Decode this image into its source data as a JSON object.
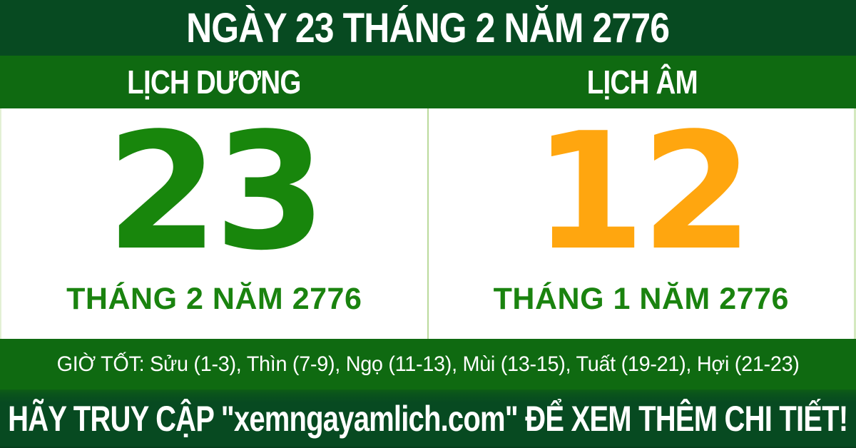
{
  "colors": {
    "dark_green": "#074a21",
    "band_green": "#0f6a11",
    "day_green": "#18860c",
    "day_orange": "#ffa60f",
    "label_green": "#1a830f",
    "divider_green": "#bada9c",
    "text_white": "#ffffff"
  },
  "title_bar": {
    "text": "NGÀY 23 THÁNG 2 NĂM 2776"
  },
  "calendar": {
    "solar": {
      "header": "LỊCH DƯƠNG",
      "day": "23",
      "month_year": "THÁNG 2 NĂM 2776"
    },
    "lunar": {
      "header": "LỊCH ÂM",
      "day": "12",
      "month_year": "THÁNG 1 NĂM 2776"
    }
  },
  "good_hours": {
    "label": "GIỜ TỐT:",
    "items": [
      "Sửu (1-3)",
      "Thìn (7-9)",
      "Ngọ (11-13)",
      "Mùi (13-15)",
      "Tuất (19-21)",
      "Hợi (21-23)"
    ]
  },
  "footer": {
    "cta": "HÃY TRUY CẬP \"xemngayamlich.com\" ĐỂ XEM THÊM CHI TIẾT!"
  }
}
